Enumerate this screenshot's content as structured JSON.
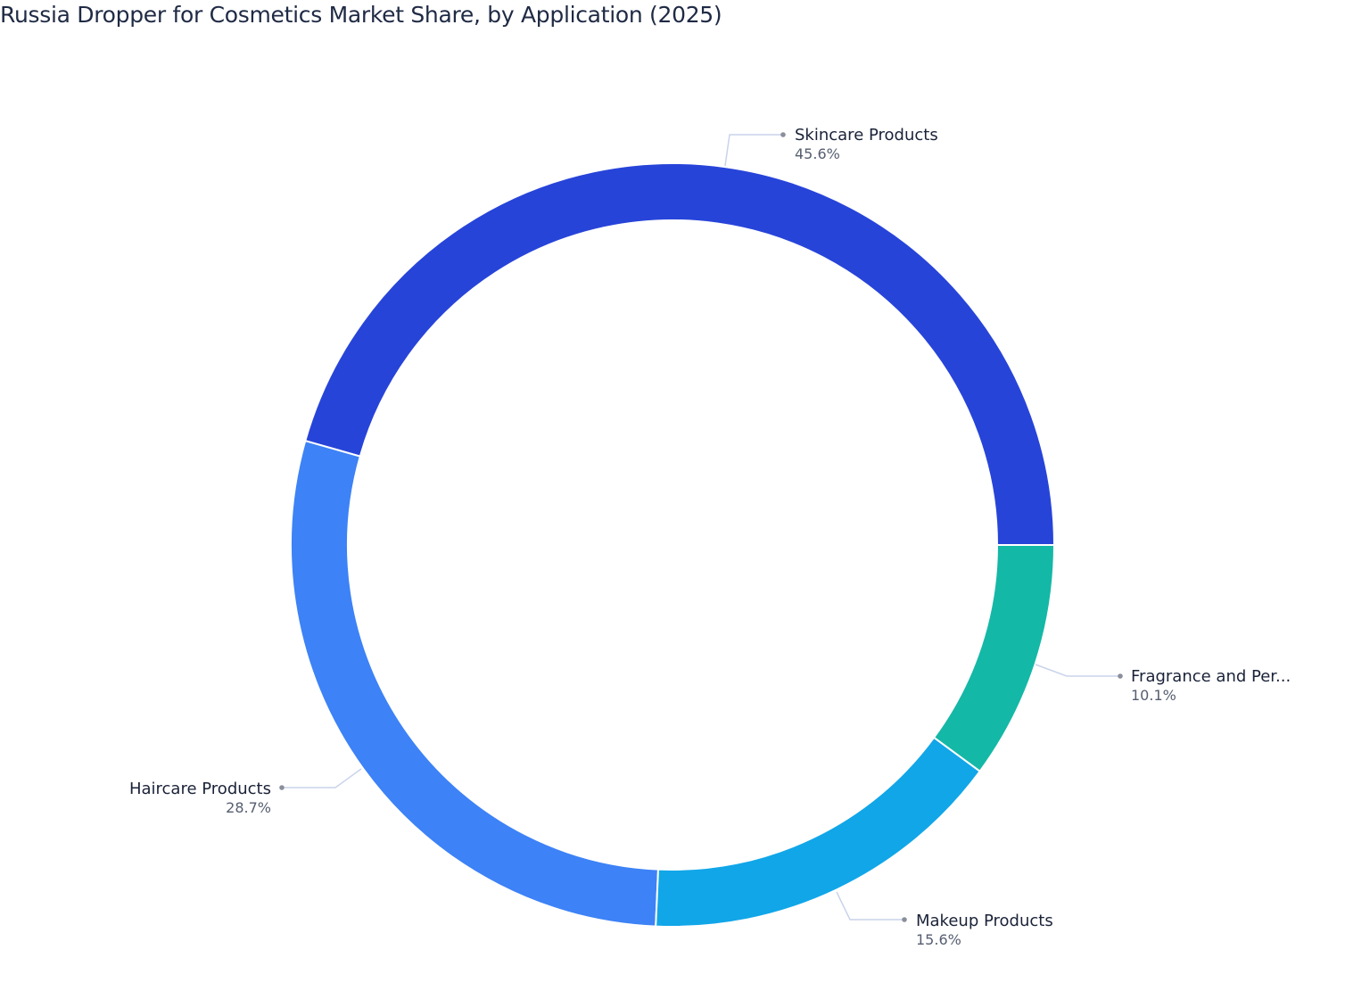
{
  "title": "Russia Dropper for Cosmetics Market Share, by Application (2025)",
  "chart_data": {
    "type": "pie",
    "subtype": "donut",
    "title": "Russia Dropper for Cosmetics Market Share, by Application (2025)",
    "categories": [
      "Skincare Products",
      "Haircare Products",
      "Makeup Products",
      "Fragrance and Per..."
    ],
    "values": [
      45.6,
      28.7,
      15.6,
      10.1
    ],
    "unit": "%",
    "colors": [
      "#2744d9",
      "#3d82f6",
      "#11a6e8",
      "#14b8a6"
    ],
    "legend": "none (outside labels with leader lines)",
    "start_angle_deg": 0,
    "direction": "counterclockwise"
  },
  "labels": [
    {
      "name": "Skincare Products",
      "pct": "45.6%"
    },
    {
      "name": "Haircare Products",
      "pct": "28.7%"
    },
    {
      "name": "Makeup Products",
      "pct": "15.6%"
    },
    {
      "name": "Fragrance and Per...",
      "pct": "10.1%"
    }
  ]
}
